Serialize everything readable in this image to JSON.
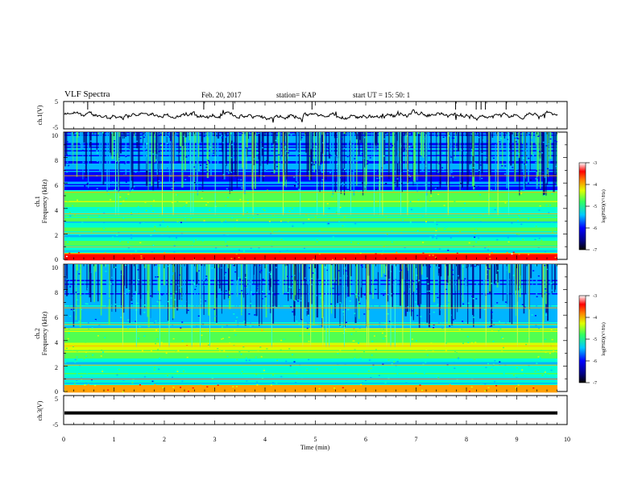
{
  "header": {
    "title": "VLF Spectra",
    "date": "Feb. 20, 2017",
    "station": "station= KAP",
    "start_ut": "start  UT  =   15: 50: 1"
  },
  "chart_data": [
    {
      "type": "line",
      "panel": "channel-1-voltage",
      "ylabel": "ch.1(V)",
      "ylim": [
        -5,
        5
      ],
      "yticks": [
        "5",
        "-5"
      ],
      "xlim": [
        0,
        10
      ],
      "series": [
        {
          "values_desc": "noisy waveform oscillating around 0 V with amplitude ~2 V"
        }
      ]
    },
    {
      "type": "heatmap",
      "panel": "channel-1-spectrogram",
      "ylabel": "ch.1\nFrequency (kHz)",
      "ylabel_lines": [
        "ch.1",
        "Frequency (kHz)"
      ],
      "ylim": [
        0,
        10
      ],
      "yticks": [
        "0",
        "2",
        "4",
        "6",
        "8",
        "10"
      ],
      "xlim": [
        0,
        9.8
      ],
      "colorbar": {
        "label": "log(PSD)(V²/Hz)",
        "range": [
          -7,
          -3
        ],
        "ticks": [
          "-3",
          "-4",
          "-5",
          "-6",
          "-7"
        ]
      }
    },
    {
      "type": "heatmap",
      "panel": "channel-2-spectrogram",
      "ylabel": "ch.2\nFrequency (kHz)",
      "ylabel_lines": [
        "ch.2",
        "Frequency (kHz)"
      ],
      "ylim": [
        0,
        10
      ],
      "yticks": [
        "0",
        "2",
        "4",
        "6",
        "8",
        "10"
      ],
      "xlim": [
        0,
        9.8
      ],
      "colorbar": {
        "label": "log(PSD)(V²/Hz)",
        "range": [
          -7,
          -3
        ],
        "ticks": [
          "-3",
          "-4",
          "-5",
          "-6",
          "-7"
        ]
      }
    },
    {
      "type": "line",
      "panel": "channel-3-voltage",
      "ylabel": "ch.3(V)",
      "ylim": [
        -5,
        5
      ],
      "yticks": [
        "5",
        "-5"
      ],
      "xlim": [
        0,
        10
      ],
      "series": [
        {
          "values_desc": "flat line at about -1 V",
          "level": -1
        }
      ]
    }
  ],
  "xaxis": {
    "label": "Time (min)",
    "ticks": [
      "0",
      "1",
      "2",
      "3",
      "4",
      "5",
      "6",
      "7",
      "8",
      "9",
      "10"
    ],
    "range": [
      0,
      10
    ]
  },
  "colors": {
    "colormap": [
      "#000080",
      "#0000ff",
      "#00b4ff",
      "#00ffd0",
      "#50ff50",
      "#d8ff00",
      "#ffa000",
      "#ff0000",
      "#ffffff"
    ]
  }
}
